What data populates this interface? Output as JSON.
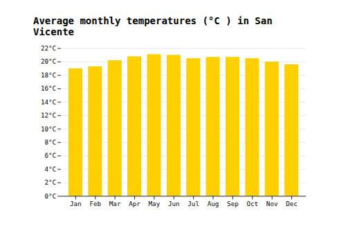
{
  "chart_data": {
    "type": "bar",
    "title": "Average monthly temperatures (°C ) in San Vicente",
    "categories": [
      "Jan",
      "Feb",
      "Mar",
      "Apr",
      "May",
      "Jun",
      "Jul",
      "Aug",
      "Sep",
      "Oct",
      "Nov",
      "Dec"
    ],
    "values": [
      19.0,
      19.3,
      20.2,
      20.8,
      21.1,
      21.0,
      20.5,
      20.7,
      20.7,
      20.5,
      20.0,
      19.6
    ],
    "color": "#FFD000",
    "ylim": [
      0,
      22
    ],
    "yticks": [
      {
        "value": 0,
        "label": "0°C"
      },
      {
        "value": 2,
        "label": "2°C"
      },
      {
        "value": 4,
        "label": "4°C"
      },
      {
        "value": 6,
        "label": "6°C"
      },
      {
        "value": 8,
        "label": "8°C"
      },
      {
        "value": 10,
        "label": "10°C"
      },
      {
        "value": 12,
        "label": "12°C"
      },
      {
        "value": 14,
        "label": "14°C"
      },
      {
        "value": 16,
        "label": "16°C"
      },
      {
        "value": 18,
        "label": "18°C"
      },
      {
        "value": 20,
        "label": "20°C"
      },
      {
        "value": 22,
        "label": "22°C"
      }
    ],
    "grid": true
  }
}
